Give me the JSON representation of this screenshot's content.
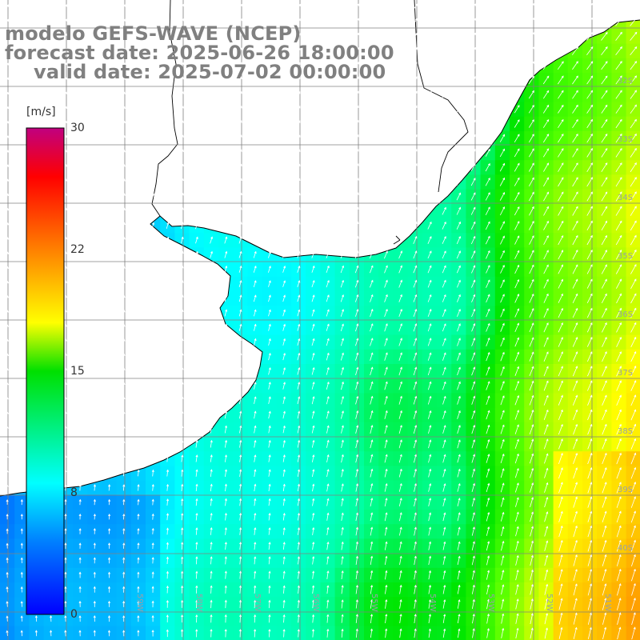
{
  "titles": {
    "line1": "modelo GEFS-WAVE (NCEP)",
    "line2": "forecast date: 2025-06-26 18:00:00",
    "line3": "valid date: 2025-07-02 00:00:00"
  },
  "colorbar": {
    "unit": "[m/s]",
    "ticks": [
      "30",
      "22",
      "15",
      "8",
      "0"
    ],
    "tick_values": [
      30,
      22,
      15,
      8,
      0
    ],
    "range": [
      0,
      30
    ],
    "colors": [
      "#0000ff",
      "#00c0ff",
      "#00ffff",
      "#00ff00",
      "#ffff00",
      "#ff8000",
      "#ff0000",
      "#c00080"
    ]
  },
  "map": {
    "land_color": "#ffffff",
    "coast_color": "#000000",
    "grid_color": "#808080",
    "lat_labels": [
      "32S",
      "33S",
      "34S",
      "35S",
      "36S",
      "37S",
      "38S",
      "39S",
      "40S"
    ],
    "lon_labels": [
      "59W",
      "58W",
      "57W",
      "56W",
      "55W",
      "54W",
      "53W",
      "52W",
      "51W"
    ]
  }
}
